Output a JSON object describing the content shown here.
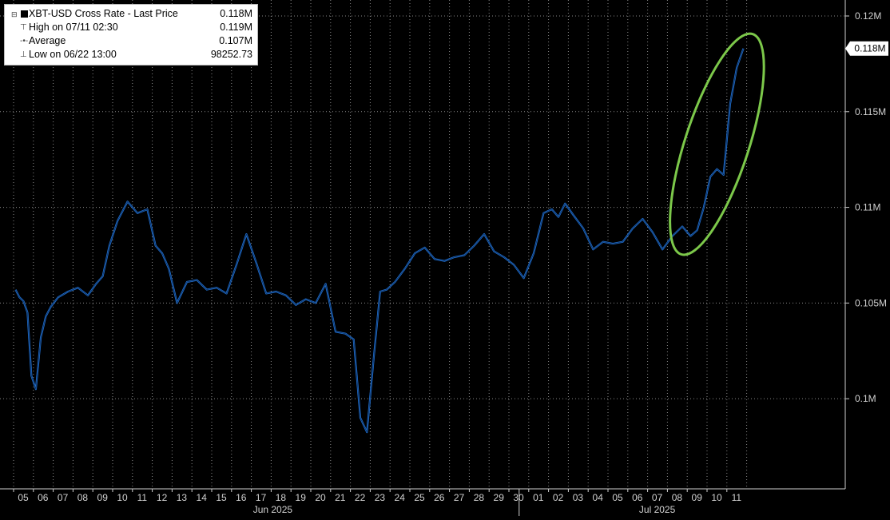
{
  "legend": {
    "rows": [
      {
        "label": "XBT-USD Cross Rate - Last Price",
        "value": "0.118M"
      },
      {
        "label": "High on 07/11 02:30",
        "value": "0.119M"
      },
      {
        "label": "Average",
        "value": "0.107M"
      },
      {
        "label": "Low on 06/22 13:00",
        "value": "98252.73"
      }
    ]
  },
  "last_price_tag": "0.118M",
  "colors": {
    "background": "#000000",
    "line": "#1f6fd1",
    "highlight_ellipse": "#7cc84a",
    "gridline": "#8a8a8a",
    "axis_text": "#d0d0d0",
    "price_tag_bg": "#ffffff",
    "price_tag_text": "#000000"
  },
  "chart_data": {
    "type": "line",
    "title": "",
    "xlabel": "",
    "ylabel": "",
    "ylim": [
      96000,
      120000
    ],
    "y_ticks": [
      {
        "value": 100000,
        "label": "0.1M"
      },
      {
        "value": 105000,
        "label": "0.105M"
      },
      {
        "value": 110000,
        "label": "0.11M"
      },
      {
        "value": 115000,
        "label": "0.115M"
      },
      {
        "value": 120000,
        "label": "0.12M"
      }
    ],
    "x_ticks": [
      "05",
      "06",
      "07",
      "08",
      "09",
      "10",
      "11",
      "12",
      "13",
      "14",
      "15",
      "16",
      "17",
      "18",
      "19",
      "20",
      "21",
      "22",
      "23",
      "24",
      "25",
      "26",
      "27",
      "28",
      "29",
      "30",
      "01",
      "02",
      "03",
      "04",
      "05",
      "06",
      "07",
      "08",
      "09",
      "10",
      "11"
    ],
    "x_month_labels": [
      "Jun 2025",
      "Jul 2025"
    ],
    "grid": true,
    "legend_position": "top-left",
    "series": [
      {
        "name": "XBT-USD Cross Rate - Last Price",
        "x": [
          "06-05",
          "06-05",
          "06-05",
          "06-05",
          "06-05",
          "06-06",
          "06-06",
          "06-06",
          "06-06",
          "06-07",
          "06-07",
          "06-08",
          "06-08",
          "06-09",
          "06-09",
          "06-09",
          "06-10",
          "06-10",
          "06-11",
          "06-11",
          "06-12",
          "06-12",
          "06-12",
          "06-13",
          "06-13",
          "06-14",
          "06-14",
          "06-15",
          "06-15",
          "06-16",
          "06-16",
          "06-17",
          "06-17",
          "06-18",
          "06-18",
          "06-19",
          "06-19",
          "06-20",
          "06-20",
          "06-21",
          "06-21",
          "06-22",
          "06-22",
          "06-22",
          "06-23",
          "06-23",
          "06-23",
          "06-24",
          "06-24",
          "06-25",
          "06-25",
          "06-26",
          "06-26",
          "06-27",
          "06-27",
          "06-28",
          "06-28",
          "06-29",
          "06-29",
          "06-30",
          "06-30",
          "07-01",
          "07-01",
          "07-02",
          "07-02",
          "07-02",
          "07-03",
          "07-03",
          "07-04",
          "07-04",
          "07-05",
          "07-05",
          "07-06",
          "07-06",
          "07-07",
          "07-07",
          "07-08",
          "07-08",
          "07-09",
          "07-09",
          "07-09",
          "07-10",
          "07-10",
          "07-10",
          "07-11",
          "07-11",
          "07-11"
        ],
        "values": [
          105700,
          105300,
          105100,
          104500,
          101200,
          100500,
          103200,
          104300,
          104800,
          105300,
          105600,
          105800,
          105400,
          106000,
          106400,
          108000,
          109300,
          110300,
          109700,
          109900,
          108000,
          107600,
          106800,
          105000,
          106100,
          106200,
          105700,
          105800,
          105500,
          107000,
          108600,
          107100,
          105500,
          105600,
          105400,
          104900,
          105200,
          105000,
          106000,
          103500,
          103400,
          103100,
          99000,
          98250,
          102000,
          105600,
          105700,
          106100,
          106800,
          107600,
          107900,
          107300,
          107200,
          107400,
          107500,
          108000,
          108600,
          107700,
          107400,
          107000,
          106300,
          107600,
          109700,
          109900,
          109500,
          110200,
          109600,
          108900,
          107800,
          108200,
          108100,
          108200,
          108900,
          109400,
          108700,
          107800,
          108500,
          109000,
          108500,
          108800,
          110000,
          111600,
          112000,
          111700,
          115400,
          117300,
          118300
        ]
      }
    ],
    "annotations": [
      {
        "type": "ellipse",
        "color": "#7cc84a",
        "x_range": [
          "07-09",
          "07-11"
        ],
        "y_range": [
          107500,
          119100
        ]
      }
    ]
  }
}
